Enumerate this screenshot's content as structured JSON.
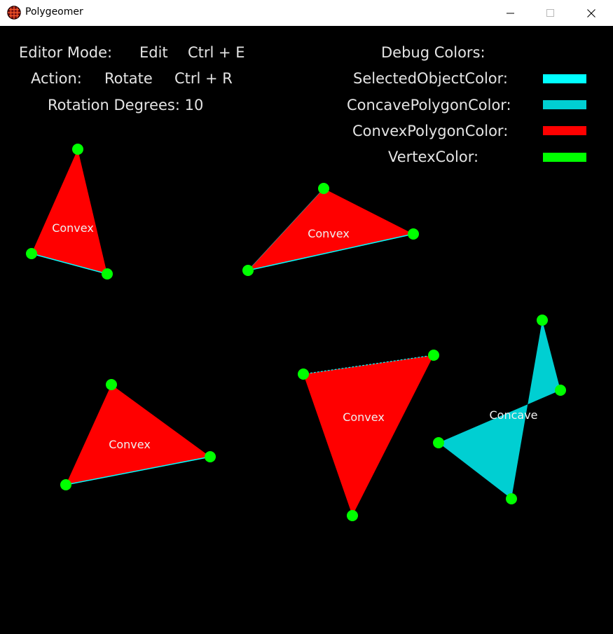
{
  "window": {
    "title": "Polygeomer",
    "icon": "globe-grid-icon",
    "controls": [
      "minimize-icon",
      "maximize-icon",
      "close-icon"
    ]
  },
  "hud": {
    "editor_mode_label": "Editor Mode:",
    "editor_mode_value": "Edit",
    "editor_mode_shortcut": "Ctrl + E",
    "action_label": "Action:",
    "action_value": "Rotate",
    "action_shortcut": "Ctrl + R",
    "rotation_text": "Rotation Degrees: 10",
    "debug_title": "Debug Colors:",
    "debug_colors": [
      {
        "label": "SelectedObjectColor:",
        "color": "#00ffff"
      },
      {
        "label": "ConcavePolygonColor:",
        "color": "#00cfd2"
      },
      {
        "label": "ConvexPolygonColor:",
        "color": "#ff0000"
      },
      {
        "label": "VertexColor:",
        "color": "#00ff00"
      }
    ]
  },
  "colors": {
    "background": "#000000",
    "convex": "#ff0000",
    "concave": "#00cfd2",
    "selected_edge": "#00ffff",
    "vertex": "#00ff00",
    "text": "#e4e4e4"
  },
  "polygons": [
    {
      "label": "Convex",
      "type": "convex"
    },
    {
      "label": "Convex",
      "type": "convex"
    },
    {
      "label": "Convex",
      "type": "convex"
    },
    {
      "label": "Convex",
      "type": "convex"
    },
    {
      "label": "Concave",
      "type": "concave"
    }
  ]
}
